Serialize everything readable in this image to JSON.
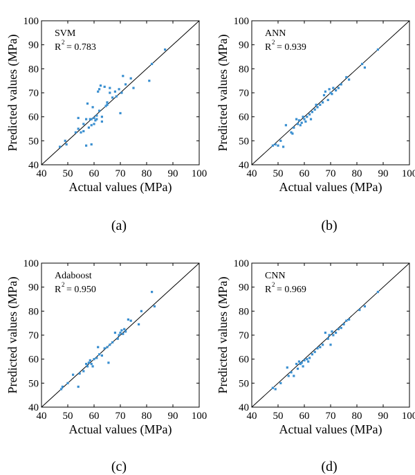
{
  "chart_data": [
    {
      "type": "scatter",
      "model": "SVM",
      "r2_prefix": "R",
      "r2_sup": "2",
      "r2_value": "= 0.783",
      "panel_label": "(a)",
      "xlabel": "Actual values (MPa)",
      "ylabel": "Predicted values (MPa)",
      "xlim": [
        40,
        100
      ],
      "ylim": [
        40,
        100
      ],
      "xticks": [
        "40",
        "50",
        "60",
        "70",
        "80",
        "90",
        "100"
      ],
      "yticks": [
        "40",
        "50",
        "60",
        "70",
        "80",
        "90",
        "100"
      ],
      "reference_line": "y = x",
      "points": [
        [
          47,
          47.5
        ],
        [
          49,
          50
        ],
        [
          49.5,
          48.5
        ],
        [
          53,
          53.5
        ],
        [
          54,
          55
        ],
        [
          54,
          59.5
        ],
        [
          55,
          53.5
        ],
        [
          56,
          54
        ],
        [
          56,
          57
        ],
        [
          57,
          48
        ],
        [
          57,
          59
        ],
        [
          57.5,
          65.5
        ],
        [
          58,
          55.5
        ],
        [
          58.5,
          59
        ],
        [
          59,
          48.5
        ],
        [
          59,
          56.5
        ],
        [
          59,
          59
        ],
        [
          59.5,
          64
        ],
        [
          60,
          57
        ],
        [
          60,
          59.5
        ],
        [
          60.5,
          58.5
        ],
        [
          61,
          59
        ],
        [
          61,
          60.5
        ],
        [
          61.5,
          70.5
        ],
        [
          62,
          71.5
        ],
        [
          62,
          62.5
        ],
        [
          62.5,
          73
        ],
        [
          63,
          58
        ],
        [
          63,
          60
        ],
        [
          64,
          72.5
        ],
        [
          64.5,
          64.5
        ],
        [
          65,
          66
        ],
        [
          65,
          65
        ],
        [
          66,
          70
        ],
        [
          66,
          72
        ],
        [
          67,
          68
        ],
        [
          68,
          70.5
        ],
        [
          68.5,
          68.5
        ],
        [
          69.5,
          71.5
        ],
        [
          70,
          61.5
        ],
        [
          70.5,
          70
        ],
        [
          71,
          77
        ],
        [
          72,
          73.5
        ],
        [
          74,
          76
        ],
        [
          75,
          72
        ],
        [
          81,
          75
        ],
        [
          82,
          82
        ],
        [
          87,
          88
        ]
      ]
    },
    {
      "type": "scatter",
      "model": "ANN",
      "r2_prefix": "R",
      "r2_sup": "2",
      "r2_value": "= 0.939",
      "panel_label": "(b)",
      "xlabel": "Actual values (MPa)",
      "ylabel": "Predicted values (MPa)",
      "xlim": [
        40,
        100
      ],
      "ylim": [
        40,
        100
      ],
      "xticks": [
        "40",
        "50",
        "60",
        "70",
        "80",
        "90",
        "100"
      ],
      "yticks": [
        "40",
        "50",
        "60",
        "70",
        "80",
        "90",
        "100"
      ],
      "reference_line": "y = x",
      "points": [
        [
          48,
          48
        ],
        [
          49,
          48.5
        ],
        [
          50,
          48
        ],
        [
          51,
          50
        ],
        [
          52,
          47.5
        ],
        [
          53,
          56.5
        ],
        [
          55,
          53.5
        ],
        [
          55.5,
          53
        ],
        [
          56,
          55.5
        ],
        [
          57,
          59
        ],
        [
          57.5,
          57
        ],
        [
          58,
          58.5
        ],
        [
          58.5,
          56.5
        ],
        [
          59,
          57.5
        ],
        [
          59.5,
          60
        ],
        [
          60,
          59
        ],
        [
          60.5,
          58
        ],
        [
          61,
          60
        ],
        [
          62,
          61
        ],
        [
          62.5,
          59
        ],
        [
          63,
          62
        ],
        [
          64,
          63
        ],
        [
          64.5,
          65
        ],
        [
          65,
          64
        ],
        [
          66,
          65
        ],
        [
          67,
          66
        ],
        [
          67.5,
          69
        ],
        [
          68,
          70.5
        ],
        [
          69,
          67
        ],
        [
          69.5,
          71.5
        ],
        [
          70,
          70
        ],
        [
          70.5,
          69.5
        ],
        [
          71,
          72
        ],
        [
          72,
          71
        ],
        [
          73,
          72
        ],
        [
          74,
          73.5
        ],
        [
          76,
          76.5
        ],
        [
          77,
          75.5
        ],
        [
          82,
          82
        ],
        [
          83,
          80.5
        ],
        [
          88,
          88
        ]
      ]
    },
    {
      "type": "scatter",
      "model": "Adaboost",
      "r2_prefix": "R",
      "r2_sup": "2",
      "r2_value": "= 0.950",
      "panel_label": "(c)",
      "xlabel": "Actual values (MPa)",
      "ylabel": "Predicted values (MPa)",
      "xlim": [
        40,
        100
      ],
      "ylim": [
        40,
        100
      ],
      "xticks": [
        "40",
        "50",
        "60",
        "70",
        "80",
        "90",
        "100"
      ],
      "yticks": [
        "40",
        "50",
        "60",
        "70",
        "80",
        "90",
        "100"
      ],
      "reference_line": "y = x",
      "points": [
        [
          47.5,
          47.5
        ],
        [
          48,
          48.5
        ],
        [
          50,
          50
        ],
        [
          52,
          53.5
        ],
        [
          54,
          48.5
        ],
        [
          54.5,
          54
        ],
        [
          56,
          55
        ],
        [
          57,
          58
        ],
        [
          57.5,
          57
        ],
        [
          58,
          58.5
        ],
        [
          58.5,
          59.5
        ],
        [
          59,
          58
        ],
        [
          59.5,
          57
        ],
        [
          60,
          60
        ],
        [
          61,
          60.5
        ],
        [
          61.5,
          65
        ],
        [
          62,
          62
        ],
        [
          63,
          61.5
        ],
        [
          64,
          64.5
        ],
        [
          65,
          65
        ],
        [
          65.5,
          58.5
        ],
        [
          66,
          66
        ],
        [
          67,
          67
        ],
        [
          68,
          71
        ],
        [
          69,
          68.5
        ],
        [
          69.5,
          70
        ],
        [
          70,
          71
        ],
        [
          70.5,
          72
        ],
        [
          71,
          70.5
        ],
        [
          71.5,
          72.5
        ],
        [
          72,
          71.5
        ],
        [
          73,
          76.5
        ],
        [
          74,
          76
        ],
        [
          77,
          74.5
        ],
        [
          78,
          80
        ],
        [
          82,
          88
        ],
        [
          83,
          82
        ]
      ]
    },
    {
      "type": "scatter",
      "model": "CNN",
      "r2_prefix": "R",
      "r2_sup": "2",
      "r2_value": "= 0.969",
      "panel_label": "(d)",
      "xlabel": "Actual values (MPa)",
      "ylabel": "Predicted values (MPa)",
      "xlim": [
        40,
        100
      ],
      "ylim": [
        40,
        100
      ],
      "xticks": [
        "40",
        "50",
        "60",
        "70",
        "80",
        "90",
        "100"
      ],
      "yticks": [
        "40",
        "50",
        "60",
        "70",
        "80",
        "90",
        "100"
      ],
      "reference_line": "y = x",
      "points": [
        [
          48,
          48
        ],
        [
          49,
          47.5
        ],
        [
          51,
          50
        ],
        [
          53.5,
          56.5
        ],
        [
          54,
          53
        ],
        [
          55,
          54.5
        ],
        [
          56,
          53
        ],
        [
          57,
          58
        ],
        [
          57.5,
          56
        ],
        [
          58,
          59
        ],
        [
          58.5,
          58
        ],
        [
          59,
          58.5
        ],
        [
          59.5,
          57
        ],
        [
          60,
          59.5
        ],
        [
          61,
          60
        ],
        [
          61.5,
          59
        ],
        [
          62,
          60.5
        ],
        [
          63,
          62
        ],
        [
          64,
          63
        ],
        [
          65,
          64.5
        ],
        [
          66,
          65
        ],
        [
          67,
          66
        ],
        [
          68,
          71
        ],
        [
          69,
          68.5
        ],
        [
          69.5,
          70
        ],
        [
          70,
          66
        ],
        [
          70.5,
          71.5
        ],
        [
          71,
          70
        ],
        [
          72,
          71
        ],
        [
          73,
          72.5
        ],
        [
          74,
          73
        ],
        [
          75,
          74.5
        ],
        [
          76,
          76
        ],
        [
          77,
          76.5
        ],
        [
          81,
          80.5
        ],
        [
          83,
          82
        ],
        [
          88,
          88
        ]
      ]
    }
  ],
  "colors": {
    "point": "#3a8fd0",
    "axis": "#000000"
  }
}
